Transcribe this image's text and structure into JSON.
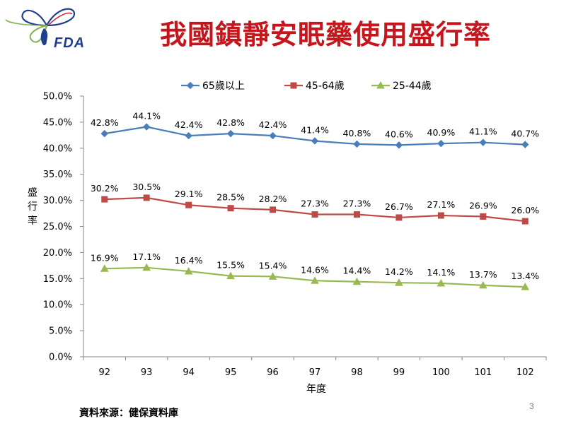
{
  "header": {
    "title": "我國鎮靜安眠藥使用盛行率",
    "logo_text": "FDA"
  },
  "footer": {
    "source": "資料來源：健保資料庫",
    "page_number": "3"
  },
  "colors": {
    "title": "#c4161c",
    "series_65": "#4a7ebb",
    "series_45": "#be4b48",
    "series_25": "#98b954",
    "logo_blue": "#1f3f8c"
  },
  "chart_data": {
    "type": "line",
    "title": "",
    "xlabel": "年度",
    "ylabel": "盛行率",
    "categories": [
      "92",
      "93",
      "94",
      "95",
      "96",
      "97",
      "98",
      "99",
      "100",
      "101",
      "102"
    ],
    "ylim": [
      0,
      0.5
    ],
    "ytick_step": 0.05,
    "ytick_labels": [
      "0.0%",
      "5.0%",
      "10.0%",
      "15.0%",
      "20.0%",
      "25.0%",
      "30.0%",
      "35.0%",
      "40.0%",
      "45.0%",
      "50.0%"
    ],
    "grid": false,
    "legend_position": "top",
    "series": [
      {
        "name": "65歲以上",
        "marker": "diamond",
        "color": "#4a7ebb",
        "values": [
          0.428,
          0.441,
          0.424,
          0.428,
          0.424,
          0.414,
          0.408,
          0.406,
          0.409,
          0.411,
          0.407
        ],
        "labels": [
          "42.8%",
          "44.1%",
          "42.4%",
          "42.8%",
          "42.4%",
          "41.4%",
          "40.8%",
          "40.6%",
          "40.9%",
          "41.1%",
          "40.7%"
        ]
      },
      {
        "name": "45-64歲",
        "marker": "square",
        "color": "#be4b48",
        "values": [
          0.302,
          0.305,
          0.291,
          0.285,
          0.282,
          0.273,
          0.273,
          0.267,
          0.271,
          0.269,
          0.26
        ],
        "labels": [
          "30.2%",
          "30.5%",
          "29.1%",
          "28.5%",
          "28.2%",
          "27.3%",
          "27.3%",
          "26.7%",
          "27.1%",
          "26.9%",
          "26.0%"
        ]
      },
      {
        "name": "25-44歲",
        "marker": "triangle",
        "color": "#98b954",
        "values": [
          0.169,
          0.171,
          0.164,
          0.155,
          0.154,
          0.146,
          0.144,
          0.142,
          0.141,
          0.137,
          0.134
        ],
        "labels": [
          "16.9%",
          "17.1%",
          "16.4%",
          "15.5%",
          "15.4%",
          "14.6%",
          "14.4%",
          "14.2%",
          "14.1%",
          "13.7%",
          "13.4%"
        ]
      }
    ]
  }
}
